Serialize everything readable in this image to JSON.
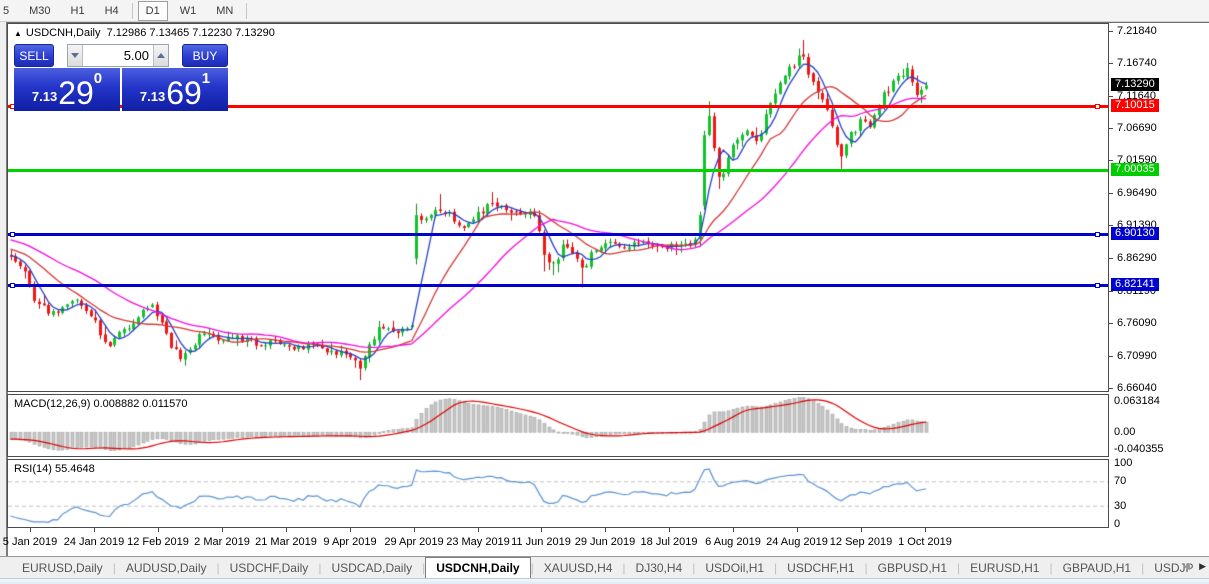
{
  "toolbar": {
    "timeframes": [
      "5",
      "M30",
      "H1",
      "H4",
      "D1",
      "W1",
      "MN"
    ],
    "active": "D1"
  },
  "chart": {
    "title_symbol": "USDCNH,Daily",
    "title_quote": "7.12986 7.13465 7.12230 7.13290"
  },
  "trade_panel": {
    "sell_label": "SELL",
    "buy_label": "BUY",
    "volume": "5.00",
    "sell_price": {
      "prefix": "7.13",
      "big": "29",
      "sup": "0"
    },
    "buy_price": {
      "prefix": "7.13",
      "big": "69",
      "sup": "1"
    }
  },
  "price_axis": {
    "ticks": [
      "7.21840",
      "7.16740",
      "7.11640",
      "7.06690",
      "7.01590",
      "6.96490",
      "6.91390",
      "6.86290",
      "6.81190",
      "6.76090",
      "6.70990",
      "6.66040"
    ],
    "badges": [
      {
        "value": "7.13290",
        "price": 7.1329,
        "bg": "#000000",
        "fg": "#ffffff"
      },
      {
        "value": "7.10015",
        "price": 7.10015,
        "bg": "#fe0000",
        "fg": "#ffffff"
      },
      {
        "value": "7.00035",
        "price": 7.00035,
        "bg": "#00cc00",
        "fg": "#ffffff"
      },
      {
        "value": "6.90130",
        "price": 6.9013,
        "bg": "#0202cf",
        "fg": "#ffffff"
      },
      {
        "value": "6.82141",
        "price": 6.82141,
        "bg": "#0202cf",
        "fg": "#ffffff"
      }
    ]
  },
  "macd_pane": {
    "label": "MACD(12,26,9) 0.008882 0.011570",
    "axis_max": "0.063184",
    "axis_zero": "0.00",
    "axis_min": "-0.040355"
  },
  "rsi_pane": {
    "label": "RSI(14) 55.4648",
    "axis_labels": [
      "100",
      "70",
      "30",
      "0"
    ],
    "level_lines": [
      70,
      30
    ]
  },
  "date_axis": {
    "labels": [
      "5 Jan 2019",
      "24 Jan 2019",
      "12 Feb 2019",
      "2 Mar 2019",
      "21 Mar 2019",
      "9 Apr 2019",
      "29 Apr 2019",
      "23 May 2019",
      "11 Jun 2019",
      "29 Jun 2019",
      "18 Jul 2019",
      "6 Aug 2019",
      "24 Aug 2019",
      "12 Sep 2019",
      "1 Oct 2019"
    ]
  },
  "tabs": {
    "items": [
      "EURUSD,Daily",
      "AUDUSD,Daily",
      "USDCHF,Daily",
      "USDCAD,Daily",
      "USDCNH,Daily",
      "XAUUSD,H4",
      "DJ30,H4",
      "USDOil,H1",
      "USDCHF,H1",
      "GBPUSD,H1",
      "EURUSD,H1",
      "GBPAUD,H1",
      "USDJP"
    ],
    "active": "USDCNH,Daily"
  },
  "chart_data": {
    "type": "candlestick",
    "symbol": "USDCNH",
    "timeframe": "Daily",
    "bars": 195,
    "current_ohlc": {
      "open": 7.12986,
      "high": 7.13465,
      "low": 7.1223,
      "close": 7.1329
    },
    "price_scale": {
      "top": 7.229,
      "bottom": 6.655
    },
    "close_anchors": [
      [
        0,
        6.865
      ],
      [
        3,
        6.842
      ],
      [
        5,
        6.796
      ],
      [
        8,
        6.776
      ],
      [
        11,
        6.786
      ],
      [
        14,
        6.798
      ],
      [
        17,
        6.772
      ],
      [
        19,
        6.742
      ],
      [
        21,
        6.725
      ],
      [
        24,
        6.752
      ],
      [
        28,
        6.782
      ],
      [
        30,
        6.79
      ],
      [
        33,
        6.745
      ],
      [
        36,
        6.705
      ],
      [
        38,
        6.72
      ],
      [
        41,
        6.745
      ],
      [
        44,
        6.734
      ],
      [
        48,
        6.742
      ],
      [
        52,
        6.726
      ],
      [
        56,
        6.734
      ],
      [
        60,
        6.72
      ],
      [
        64,
        6.728
      ],
      [
        68,
        6.718
      ],
      [
        71,
        6.712
      ],
      [
        73,
        6.703
      ],
      [
        74,
        6.69
      ],
      [
        76,
        6.728
      ],
      [
        78,
        6.755
      ],
      [
        81,
        6.748
      ],
      [
        84,
        6.753
      ],
      [
        85,
        6.758
      ],
      [
        86,
        6.93
      ],
      [
        88,
        6.925
      ],
      [
        90,
        6.938
      ],
      [
        92,
        6.932
      ],
      [
        94,
        6.92
      ],
      [
        96,
        6.91
      ],
      [
        99,
        6.935
      ],
      [
        102,
        6.948
      ],
      [
        105,
        6.938
      ],
      [
        108,
        6.932
      ],
      [
        110,
        6.936
      ],
      [
        112,
        6.905
      ],
      [
        113,
        6.868
      ],
      [
        115,
        6.856
      ],
      [
        117,
        6.884
      ],
      [
        119,
        6.87
      ],
      [
        121,
        6.848
      ],
      [
        123,
        6.872
      ],
      [
        126,
        6.886
      ],
      [
        130,
        6.878
      ],
      [
        134,
        6.888
      ],
      [
        138,
        6.88
      ],
      [
        142,
        6.884
      ],
      [
        145,
        6.892
      ],
      [
        146,
        6.93
      ],
      [
        147,
        7.055
      ],
      [
        148,
        7.085
      ],
      [
        149,
        7.035
      ],
      [
        150,
        6.99
      ],
      [
        152,
        7.02
      ],
      [
        154,
        7.048
      ],
      [
        156,
        7.062
      ],
      [
        158,
        7.046
      ],
      [
        160,
        7.088
      ],
      [
        162,
        7.12
      ],
      [
        164,
        7.148
      ],
      [
        166,
        7.162
      ],
      [
        168,
        7.178
      ],
      [
        169,
        7.15
      ],
      [
        171,
        7.122
      ],
      [
        173,
        7.095
      ],
      [
        175,
        7.04
      ],
      [
        176,
        7.022
      ],
      [
        178,
        7.06
      ],
      [
        180,
        7.08
      ],
      [
        182,
        7.068
      ],
      [
        184,
        7.098
      ],
      [
        186,
        7.122
      ],
      [
        188,
        7.148
      ],
      [
        190,
        7.16
      ],
      [
        191,
        7.138
      ],
      [
        192,
        7.118
      ],
      [
        193,
        7.126
      ],
      [
        194,
        7.1329
      ]
    ],
    "overrides": {
      "74": {
        "l": 6.672
      },
      "86": {
        "o": 6.862,
        "l": 6.853,
        "h": 6.948
      },
      "91": {
        "h": 6.963
      },
      "102": {
        "h": 6.966
      },
      "113": {
        "l": 6.842
      },
      "115": {
        "l": 6.836
      },
      "121": {
        "l": 6.817
      },
      "147": {
        "o": 6.945,
        "l": 6.938,
        "h": 7.062
      },
      "148": {
        "h": 7.108
      },
      "150": {
        "l": 6.971
      },
      "168": {
        "h": 7.204
      },
      "176": {
        "l": 7.002
      },
      "190": {
        "h": 7.168
      },
      "194": {
        "c": 7.1329
      }
    },
    "hlines": [
      {
        "price": 7.10015,
        "color": "#fe0000",
        "handles": true
      },
      {
        "price": 7.00035,
        "color": "#00d300",
        "handles": false
      },
      {
        "price": 6.9013,
        "color": "#0202cf",
        "handles": true
      },
      {
        "price": 6.82141,
        "color": "#0202cf",
        "handles": true
      }
    ],
    "moving_averages": [
      {
        "period": 5,
        "color": "#2741c9"
      },
      {
        "period": 15,
        "color": "#d23838"
      },
      {
        "period": 30,
        "color": "#f50adf"
      }
    ],
    "macd": {
      "fast": 12,
      "slow": 26,
      "signal": 9,
      "scale_max": 0.063184,
      "scale_min": -0.040355,
      "histogram_color": "#c6c6c6",
      "signal_color": "#e00000"
    },
    "rsi": {
      "period": 14,
      "color": "#5b93d3",
      "value": 55.4648
    },
    "style": {
      "bull": "#12c22e",
      "bull_edge": "#0a8f22",
      "bear": "#f21414",
      "bear_edge": "#c60d0d"
    }
  }
}
